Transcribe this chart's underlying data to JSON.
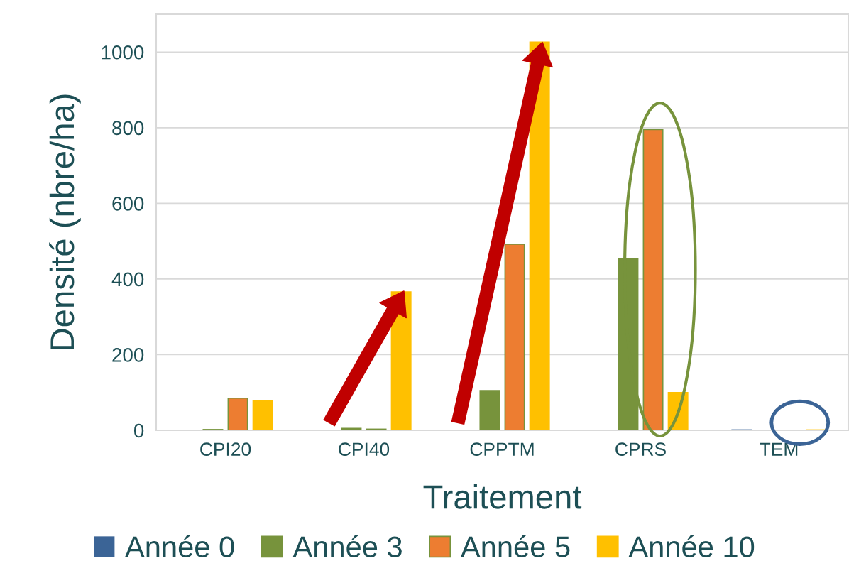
{
  "chart_data": {
    "type": "bar",
    "xlabel": "Traitement",
    "ylabel": "Densité (nbre/ha)",
    "categories": [
      "CPI20",
      "CPI40",
      "CPPTM",
      "CPRS",
      "TEM"
    ],
    "series": [
      {
        "name": "Année 0",
        "color": "#3b6496",
        "values": [
          0,
          0,
          0,
          0,
          1
        ]
      },
      {
        "name": "Année 3",
        "color": "#77933c",
        "values": [
          2,
          5,
          105,
          453,
          0
        ]
      },
      {
        "name": "Année 5",
        "color": "#ed7d31",
        "values": [
          85,
          3,
          492,
          795,
          0
        ]
      },
      {
        "name": "Année 10",
        "color": "#ffc000",
        "values": [
          79,
          366,
          1026,
          100,
          1
        ]
      }
    ],
    "ylim": [
      0,
      1100
    ],
    "yticks": [
      0,
      200,
      400,
      600,
      800,
      1000
    ],
    "grid": "y",
    "legend": "bottom"
  }
}
